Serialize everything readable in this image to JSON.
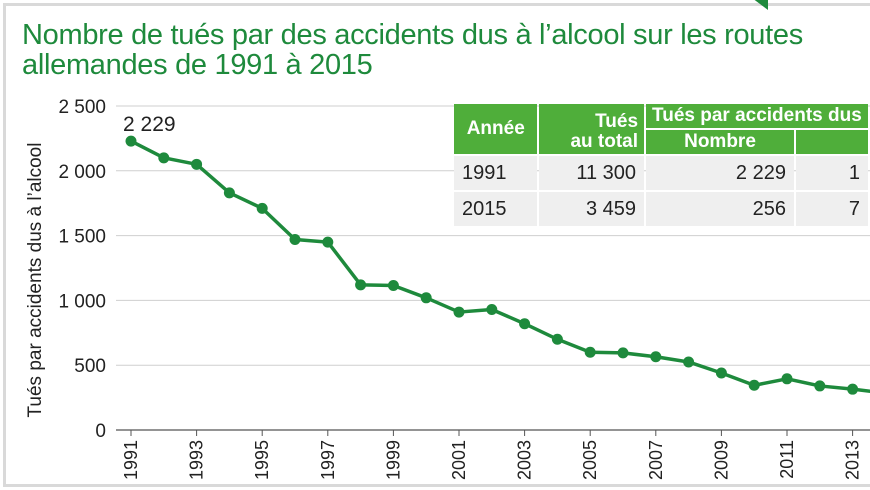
{
  "title_line1": "Nombre de tués par des accidents dus à l’alcool sur les routes",
  "title_line2": "allemandes de 1991 à 2015",
  "chart_data": {
    "type": "line",
    "title": "Nombre de tués par des accidents dus à l’alcool sur les routes allemandes de 1991 à 2015",
    "ylabel": "Tués par accidents dus à l’alcool",
    "xlabel": "",
    "ylim": [
      0,
      2500
    ],
    "yticks": [
      "0",
      "500",
      "1 000",
      "1 500",
      "2 000",
      "2 500"
    ],
    "ytick_values": [
      0,
      500,
      1000,
      1500,
      2000,
      2500
    ],
    "xticks": [
      "1991",
      "1993",
      "1995",
      "1997",
      "1999",
      "2001",
      "2003",
      "2005",
      "2007",
      "2009",
      "2011",
      "2013"
    ],
    "x": [
      1991,
      1992,
      1993,
      1994,
      1995,
      1996,
      1997,
      1998,
      1999,
      2000,
      2001,
      2002,
      2003,
      2004,
      2005,
      2006,
      2007,
      2008,
      2009,
      2010,
      2011,
      2012,
      2013,
      2014
    ],
    "values": [
      2229,
      2100,
      2050,
      1830,
      1710,
      1470,
      1450,
      1120,
      1115,
      1020,
      910,
      930,
      820,
      700,
      600,
      595,
      565,
      525,
      440,
      345,
      395,
      340,
      315,
      285
    ],
    "annotation": {
      "x": 1991,
      "text": "2 229"
    },
    "color": "#1e8a3c",
    "grid": true
  },
  "table": {
    "headers": {
      "annee": "Année",
      "tues_total_1": "Tués",
      "tues_total_2": "au total",
      "group": "Tués par accidents dus",
      "nombre": "Nombre"
    },
    "rows": [
      {
        "annee": "1991",
        "total": "11 300",
        "nombre": "2 229",
        "extra": "1"
      },
      {
        "annee": "2015",
        "total": "3 459",
        "nombre": "256",
        "extra": "7"
      }
    ]
  }
}
